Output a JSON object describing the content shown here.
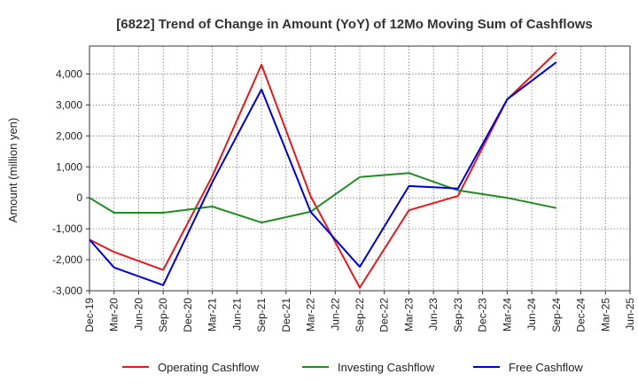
{
  "chart_data": {
    "type": "line",
    "title": "[6822]  Trend of Change in Amount (YoY) of 12Mo Moving Sum of Cashflows",
    "xlabel": "",
    "ylabel": "Amount (million yen)",
    "ylim": [
      -3000,
      4900
    ],
    "yticks": [
      -3000,
      -2000,
      -1000,
      0,
      1000,
      2000,
      3000,
      4000
    ],
    "ytick_labels": [
      "-3,000",
      "-2,000",
      "-1,000",
      "0",
      "1,000",
      "2,000",
      "3,000",
      "4,000"
    ],
    "categories": [
      "Dec-19",
      "Mar-20",
      "Jun-20",
      "Sep-20",
      "Dec-20",
      "Mar-21",
      "Jun-21",
      "Sep-21",
      "Dec-21",
      "Mar-22",
      "Jun-22",
      "Sep-22",
      "Dec-22",
      "Mar-23",
      "Jun-23",
      "Sep-23",
      "Dec-23",
      "Mar-24",
      "Jun-24",
      "Sep-24",
      "Dec-24",
      "Mar-25"
    ],
    "x_tick_labels": [
      "Dec-19",
      "Mar-20",
      "Jun-20",
      "Sep-20",
      "Dec-20",
      "Mar-21",
      "Jun-21",
      "Sep-21",
      "Dec-21",
      "Mar-22",
      "Jun-22",
      "Sep-22",
      "Dec-22",
      "Mar-23",
      "Jun-23",
      "Sep-23",
      "Dec-23",
      "Mar-24",
      "Jun-24",
      "Sep-24",
      "Dec-24",
      "Mar-25",
      "Jun-25"
    ],
    "grid": true,
    "legend_position": "bottom",
    "series": [
      {
        "name": "Operating Cashflow",
        "color": "#e31a1c",
        "points": [
          {
            "x": "Dec-19",
            "y": -1350
          },
          {
            "x": "Mar-20",
            "y": -1750
          },
          {
            "x": "Sep-20",
            "y": -2330
          },
          {
            "x": "Mar-21",
            "y": 700
          },
          {
            "x": "Sep-21",
            "y": 4300
          },
          {
            "x": "Mar-22",
            "y": 50
          },
          {
            "x": "Sep-22",
            "y": -2900
          },
          {
            "x": "Mar-23",
            "y": -400
          },
          {
            "x": "Sep-23",
            "y": 60
          },
          {
            "x": "Mar-24",
            "y": 3180
          },
          {
            "x": "Sep-24",
            "y": 4700
          }
        ]
      },
      {
        "name": "Investing Cashflow",
        "color": "#228b22",
        "points": [
          {
            "x": "Dec-19",
            "y": 0
          },
          {
            "x": "Mar-20",
            "y": -480
          },
          {
            "x": "Sep-20",
            "y": -480
          },
          {
            "x": "Mar-21",
            "y": -280
          },
          {
            "x": "Sep-21",
            "y": -800
          },
          {
            "x": "Mar-22",
            "y": -450
          },
          {
            "x": "Sep-22",
            "y": 670
          },
          {
            "x": "Mar-23",
            "y": 800
          },
          {
            "x": "Sep-23",
            "y": 240
          },
          {
            "x": "Mar-24",
            "y": 0
          },
          {
            "x": "Sep-24",
            "y": -330
          }
        ]
      },
      {
        "name": "Free Cashflow",
        "color": "#0000cc",
        "points": [
          {
            "x": "Dec-19",
            "y": -1350
          },
          {
            "x": "Mar-20",
            "y": -2250
          },
          {
            "x": "Sep-20",
            "y": -2820
          },
          {
            "x": "Mar-21",
            "y": 500
          },
          {
            "x": "Sep-21",
            "y": 3500
          },
          {
            "x": "Mar-22",
            "y": -450
          },
          {
            "x": "Sep-22",
            "y": -2230
          },
          {
            "x": "Mar-23",
            "y": 380
          },
          {
            "x": "Sep-23",
            "y": 300
          },
          {
            "x": "Mar-24",
            "y": 3180
          },
          {
            "x": "Sep-24",
            "y": 4380
          }
        ]
      }
    ]
  }
}
